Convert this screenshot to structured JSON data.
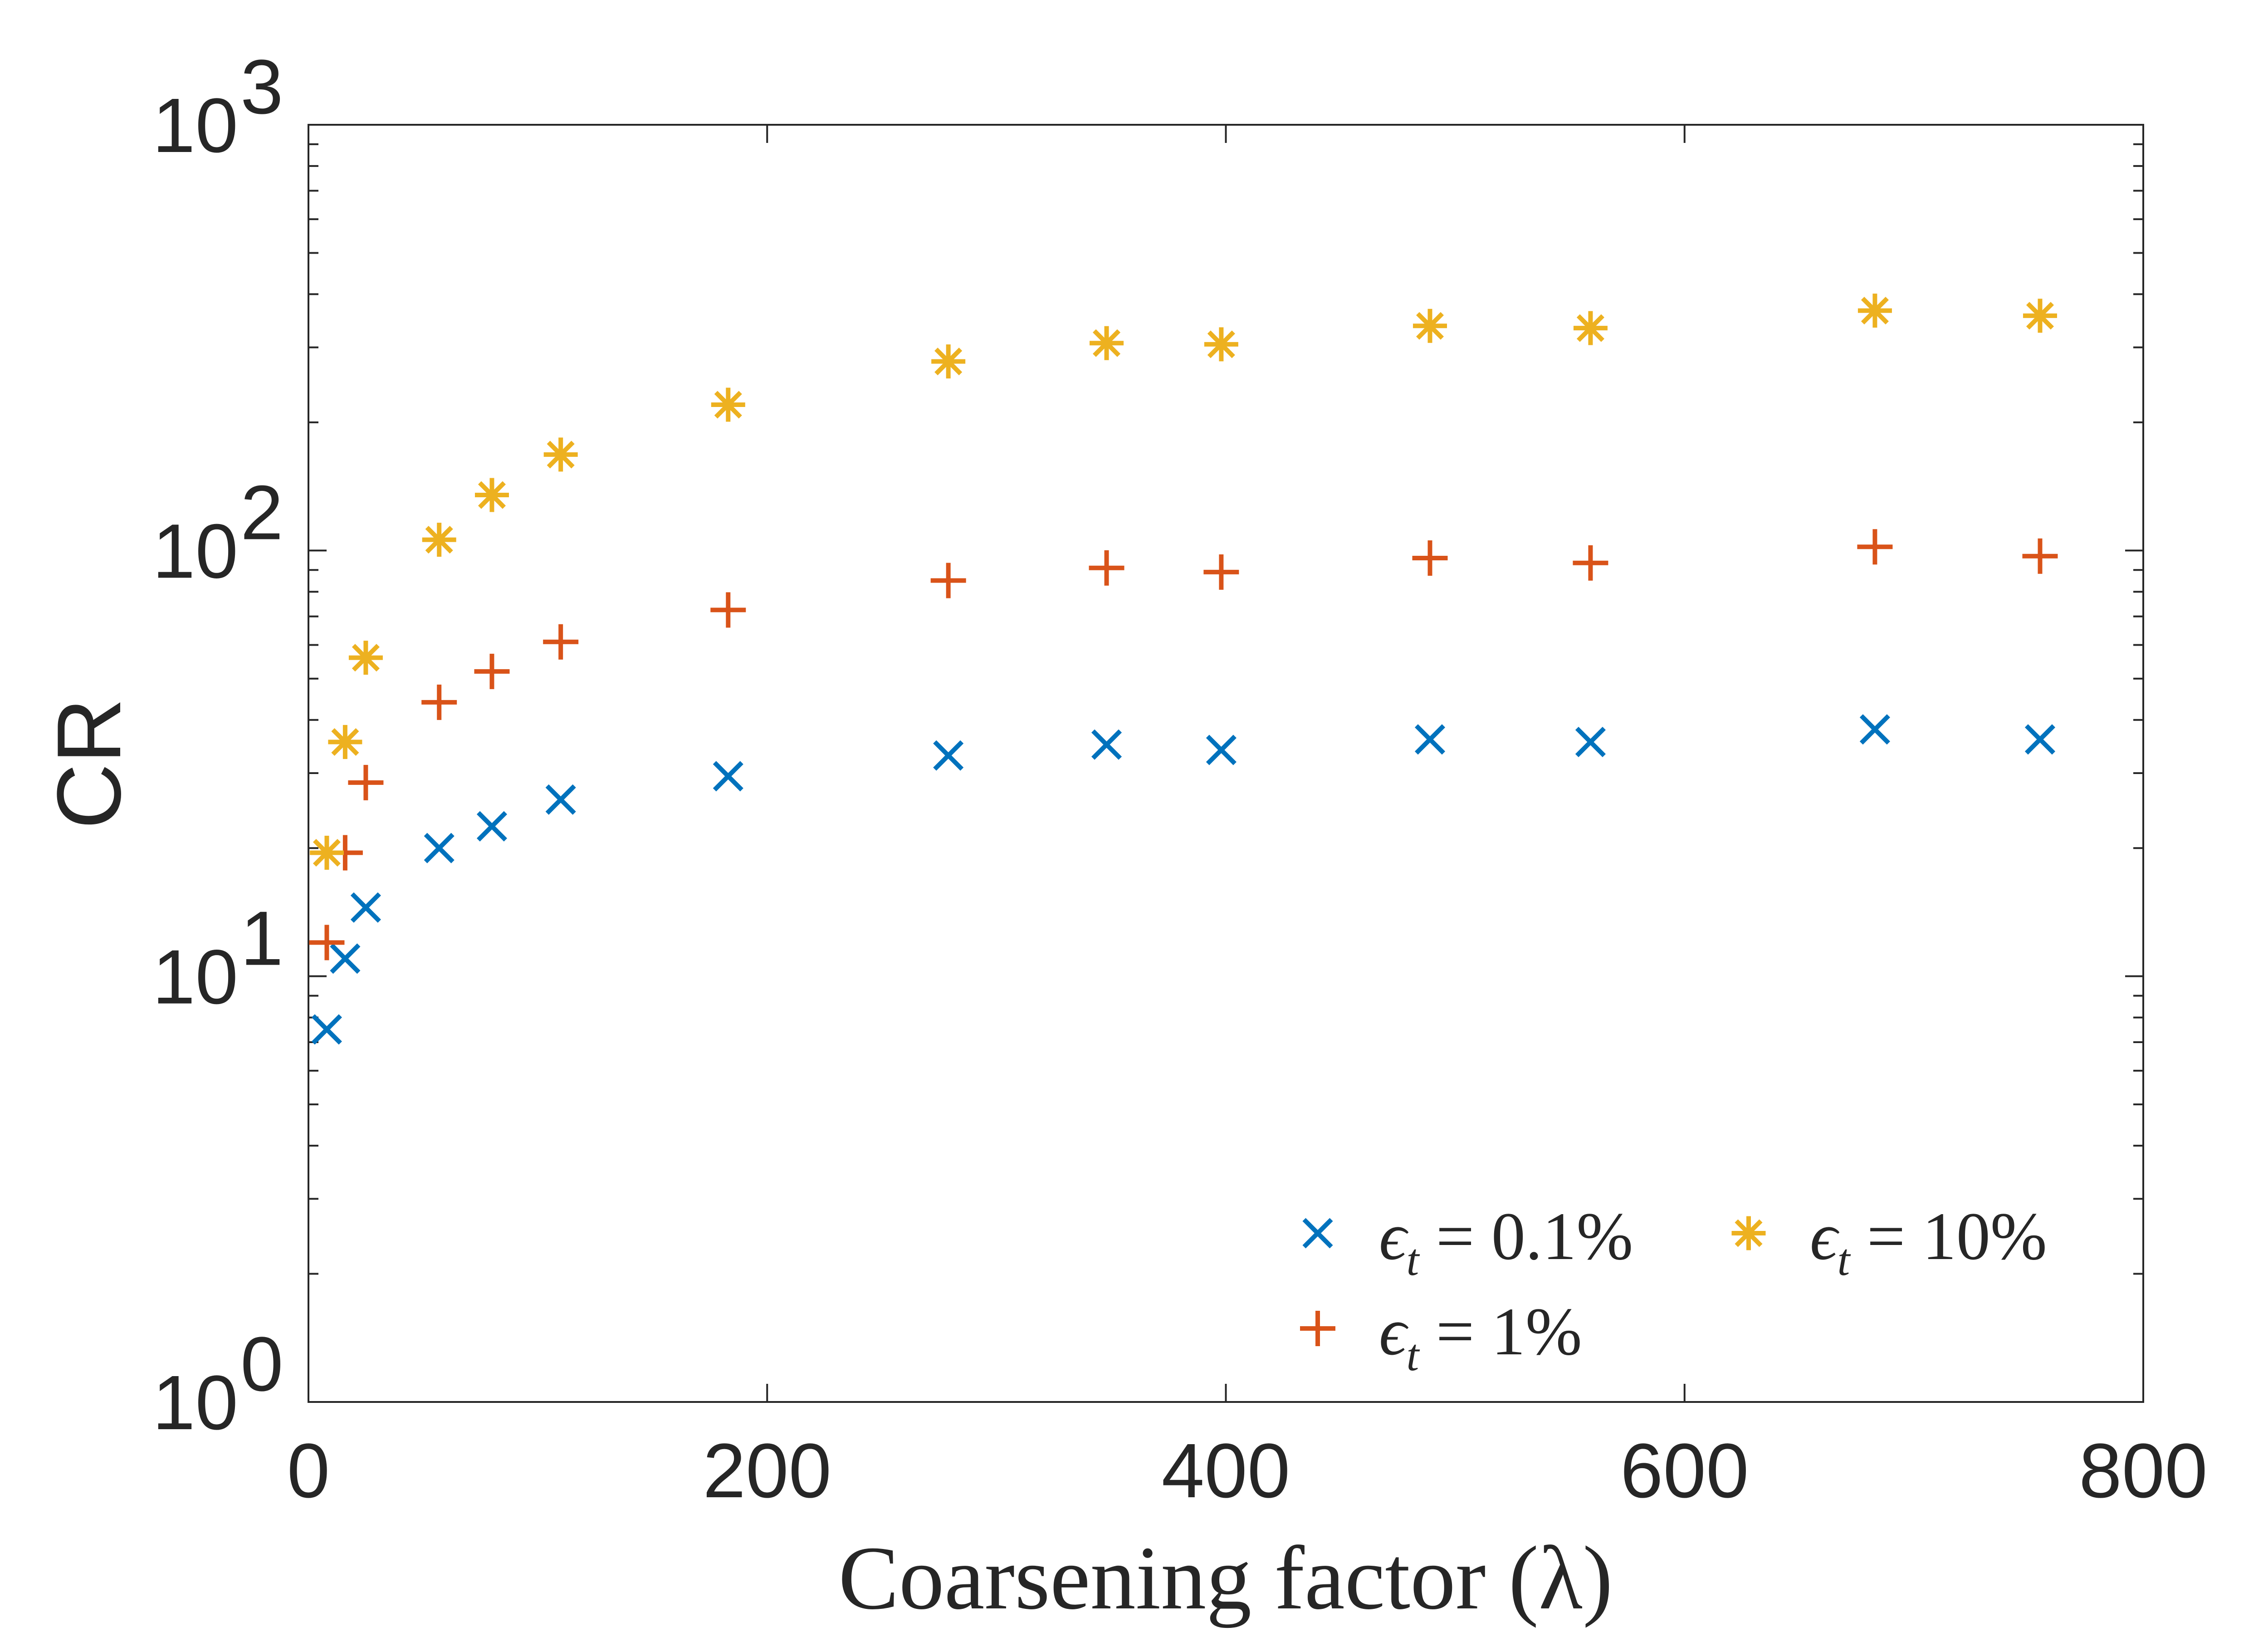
{
  "chart_data": {
    "type": "scatter",
    "title": "",
    "xlabel": "Coarsening factor (λ)",
    "ylabel": "CR",
    "xlim": [
      0,
      800
    ],
    "ylim": [
      1,
      1000
    ],
    "yscale": "log",
    "grid": false,
    "x_ticks": [
      0,
      200,
      400,
      600,
      800
    ],
    "x_tick_labels": [
      "0",
      "200",
      "400",
      "600",
      "800"
    ],
    "y_ticks": [
      1,
      10,
      100,
      1000
    ],
    "y_tick_labels": [
      {
        "base": "10",
        "exp": "0"
      },
      {
        "base": "10",
        "exp": "1"
      },
      {
        "base": "10",
        "exp": "2"
      },
      {
        "base": "10",
        "exp": "3"
      }
    ],
    "legend_position": "bottom-right",
    "series": [
      {
        "name": "ε_t = 0.1%",
        "label_parts": {
          "symbol": "ϵ",
          "sub": "t",
          "rest": " = 0.1%"
        },
        "marker": "x",
        "color": "#0072BD",
        "x": [
          8,
          16,
          25,
          57,
          80,
          110,
          183,
          279,
          348,
          398,
          489,
          559,
          683,
          755
        ],
        "y": [
          7.5,
          11,
          14.5,
          20,
          22.5,
          26,
          29.5,
          33,
          35,
          34,
          36,
          35.5,
          38,
          36
        ]
      },
      {
        "name": "ε_t = 1%",
        "label_parts": {
          "symbol": "ϵ",
          "sub": "t",
          "rest": " = 1%"
        },
        "marker": "plus",
        "color": "#D95319",
        "x": [
          8,
          16,
          25,
          57,
          80,
          110,
          183,
          279,
          348,
          398,
          489,
          559,
          683,
          755
        ],
        "y": [
          12,
          19.5,
          28.5,
          44,
          52,
          61,
          72.5,
          85,
          91,
          89,
          96,
          93.5,
          102,
          97
        ]
      },
      {
        "name": "ε_t = 10%",
        "label_parts": {
          "symbol": "ϵ",
          "sub": "t",
          "rest": " = 10%"
        },
        "marker": "asterisk",
        "color": "#EDB120",
        "x": [
          8,
          16,
          25,
          57,
          80,
          110,
          183,
          279,
          348,
          398,
          489,
          559,
          683,
          755
        ],
        "y": [
          19.5,
          35.5,
          56,
          106,
          135,
          168,
          220,
          278,
          307,
          305,
          337,
          333,
          366,
          356
        ]
      }
    ]
  }
}
